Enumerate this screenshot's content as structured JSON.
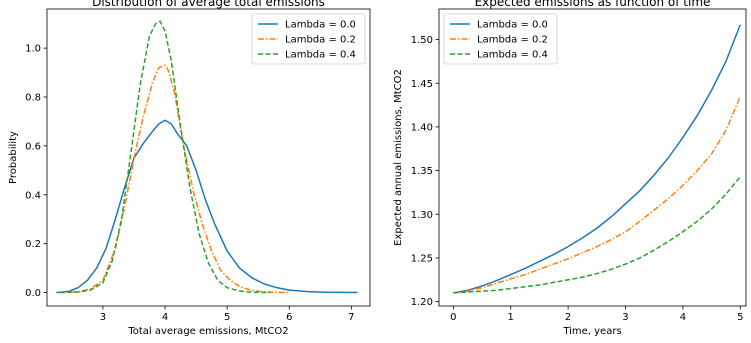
{
  "chart_data": [
    {
      "type": "line",
      "title": "Distribution of average total emissions",
      "xlabel": "Total average emissions, MtCO2",
      "ylabel": "Probability",
      "xlim": [
        2.1,
        7.3
      ],
      "ylim": [
        -0.055,
        1.16
      ],
      "xticks": [
        3,
        4,
        5,
        6,
        7
      ],
      "yticks": [
        0.0,
        0.2,
        0.4,
        0.6,
        0.8,
        1.0
      ],
      "ytick_labels": [
        "0.0",
        "0.2",
        "0.4",
        "0.6",
        "0.8",
        "1.0"
      ],
      "grid": false,
      "legend": "top-right",
      "series": [
        {
          "name": "Lambda = 0.0",
          "color": "#1f77b4",
          "dash": "solid",
          "x": [
            2.25,
            2.45,
            2.6,
            2.75,
            2.9,
            3.05,
            3.2,
            3.35,
            3.5,
            3.65,
            3.8,
            3.9,
            4.0,
            4.1,
            4.2,
            4.35,
            4.5,
            4.65,
            4.8,
            5.0,
            5.2,
            5.4,
            5.6,
            5.8,
            6.0,
            6.3,
            6.6,
            7.1
          ],
          "y": [
            0.0,
            0.005,
            0.02,
            0.05,
            0.1,
            0.18,
            0.3,
            0.43,
            0.55,
            0.61,
            0.66,
            0.69,
            0.705,
            0.69,
            0.65,
            0.6,
            0.5,
            0.38,
            0.28,
            0.17,
            0.1,
            0.06,
            0.035,
            0.02,
            0.01,
            0.004,
            0.001,
            0.0
          ]
        },
        {
          "name": "Lambda = 0.2",
          "color": "#ff7f0e",
          "dash": "dashdot",
          "x": [
            2.3,
            2.6,
            2.8,
            3.0,
            3.2,
            3.35,
            3.5,
            3.65,
            3.8,
            3.9,
            4.0,
            4.05,
            4.15,
            4.3,
            4.45,
            4.6,
            4.75,
            4.9,
            5.05,
            5.2,
            5.4,
            5.6,
            5.8,
            6.0
          ],
          "y": [
            0.0,
            0.003,
            0.015,
            0.05,
            0.18,
            0.35,
            0.55,
            0.72,
            0.86,
            0.92,
            0.93,
            0.91,
            0.82,
            0.6,
            0.42,
            0.28,
            0.17,
            0.09,
            0.05,
            0.025,
            0.008,
            0.003,
            0.001,
            0.0
          ]
        },
        {
          "name": "Lambda = 0.4",
          "color": "#2ca02c",
          "dash": "dashed",
          "x": [
            2.3,
            2.6,
            2.8,
            3.0,
            3.15,
            3.3,
            3.45,
            3.6,
            3.75,
            3.85,
            3.92,
            4.0,
            4.1,
            4.25,
            4.4,
            4.55,
            4.7,
            4.85,
            5.0,
            5.2,
            5.4,
            5.7
          ],
          "y": [
            0.0,
            0.002,
            0.01,
            0.04,
            0.13,
            0.3,
            0.57,
            0.85,
            1.05,
            1.1,
            1.11,
            1.07,
            0.95,
            0.68,
            0.43,
            0.24,
            0.12,
            0.05,
            0.02,
            0.006,
            0.001,
            0.0
          ]
        }
      ]
    },
    {
      "type": "line",
      "title": "Expected emissions as function of time",
      "xlabel": "Time, years",
      "ylabel": "Expected annual emissions, MtCO2",
      "xlim": [
        -0.25,
        5.1
      ],
      "ylim": [
        1.195,
        1.535
      ],
      "xticks": [
        0,
        1,
        2,
        3,
        4,
        5
      ],
      "yticks": [
        1.2,
        1.25,
        1.3,
        1.35,
        1.4,
        1.45,
        1.5
      ],
      "ytick_labels": [
        "1.20",
        "1.25",
        "1.30",
        "1.35",
        "1.40",
        "1.45",
        "1.50"
      ],
      "grid": false,
      "legend": "top-left",
      "series": [
        {
          "name": "Lambda = 0.0",
          "color": "#1f77b4",
          "dash": "solid",
          "x": [
            0,
            0.25,
            0.5,
            0.75,
            1.0,
            1.25,
            1.5,
            1.75,
            2.0,
            2.25,
            2.5,
            2.75,
            3.0,
            3.25,
            3.5,
            3.75,
            4.0,
            4.25,
            4.5,
            4.75,
            5.0
          ],
          "y": [
            1.21,
            1.213,
            1.218,
            1.224,
            1.231,
            1.238,
            1.246,
            1.254,
            1.263,
            1.273,
            1.284,
            1.297,
            1.312,
            1.327,
            1.345,
            1.365,
            1.388,
            1.413,
            1.442,
            1.475,
            1.517
          ]
        },
        {
          "name": "Lambda = 0.2",
          "color": "#ff7f0e",
          "dash": "dashdot",
          "x": [
            0,
            0.25,
            0.5,
            0.75,
            1.0,
            1.25,
            1.5,
            1.75,
            2.0,
            2.25,
            2.5,
            2.75,
            3.0,
            3.25,
            3.5,
            3.75,
            4.0,
            4.25,
            4.5,
            4.75,
            5.0
          ],
          "y": [
            1.21,
            1.212,
            1.216,
            1.221,
            1.226,
            1.231,
            1.237,
            1.243,
            1.249,
            1.256,
            1.263,
            1.271,
            1.28,
            1.292,
            1.305,
            1.318,
            1.333,
            1.35,
            1.369,
            1.396,
            1.435
          ]
        },
        {
          "name": "Lambda = 0.4",
          "color": "#2ca02c",
          "dash": "dashed",
          "x": [
            0,
            0.25,
            0.5,
            0.75,
            1.0,
            1.25,
            1.5,
            1.75,
            2.0,
            2.25,
            2.5,
            2.75,
            3.0,
            3.25,
            3.5,
            3.75,
            4.0,
            4.25,
            4.5,
            4.75,
            5.0
          ],
          "y": [
            1.21,
            1.211,
            1.212,
            1.213,
            1.215,
            1.217,
            1.219,
            1.222,
            1.225,
            1.228,
            1.232,
            1.237,
            1.243,
            1.25,
            1.259,
            1.269,
            1.28,
            1.292,
            1.306,
            1.323,
            1.343
          ]
        }
      ]
    }
  ]
}
